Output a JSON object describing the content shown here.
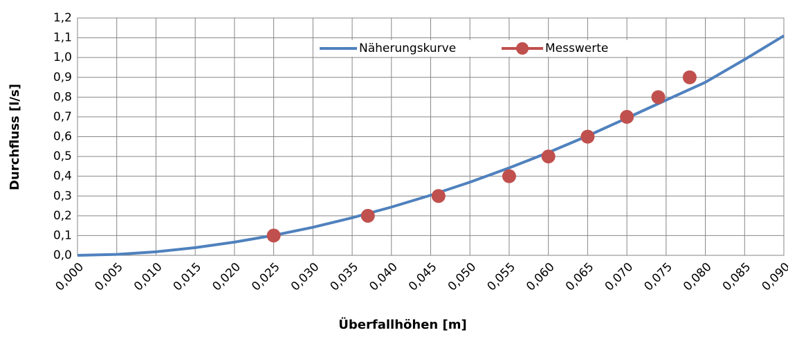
{
  "chart_data": {
    "type": "line",
    "xlabel": "Überfallhöhen [m]",
    "ylabel": "Durchfluss [l/s]",
    "xlim": [
      0,
      0.09
    ],
    "ylim": [
      0,
      1.2
    ],
    "xticks": [
      {
        "value": 0,
        "label": "0,000"
      },
      {
        "value": 0.005,
        "label": "0,005"
      },
      {
        "value": 0.01,
        "label": "0,010"
      },
      {
        "value": 0.015,
        "label": "0,015"
      },
      {
        "value": 0.02,
        "label": "0,020"
      },
      {
        "value": 0.025,
        "label": "0,025"
      },
      {
        "value": 0.03,
        "label": "0,030"
      },
      {
        "value": 0.035,
        "label": "0,035"
      },
      {
        "value": 0.04,
        "label": "0,040"
      },
      {
        "value": 0.045,
        "label": "0,045"
      },
      {
        "value": 0.05,
        "label": "0,050"
      },
      {
        "value": 0.055,
        "label": "0,055"
      },
      {
        "value": 0.06,
        "label": "0,060"
      },
      {
        "value": 0.065,
        "label": "0,065"
      },
      {
        "value": 0.07,
        "label": "0,070"
      },
      {
        "value": 0.075,
        "label": "0,075"
      },
      {
        "value": 0.08,
        "label": "0,080"
      },
      {
        "value": 0.085,
        "label": "0,085"
      },
      {
        "value": 0.09,
        "label": "0,090"
      }
    ],
    "yticks": [
      {
        "value": 0,
        "label": "0,0"
      },
      {
        "value": 0.1,
        "label": "0,1"
      },
      {
        "value": 0.2,
        "label": "0,2"
      },
      {
        "value": 0.3,
        "label": "0,3"
      },
      {
        "value": 0.4,
        "label": "0,4"
      },
      {
        "value": 0.5,
        "label": "0,5"
      },
      {
        "value": 0.6,
        "label": "0,6"
      },
      {
        "value": 0.7,
        "label": "0,7"
      },
      {
        "value": 0.8,
        "label": "0,8"
      },
      {
        "value": 0.9,
        "label": "0,9"
      },
      {
        "value": 1,
        "label": "1,0"
      },
      {
        "value": 1.1,
        "label": "1,1"
      },
      {
        "value": 1.2,
        "label": "1,2"
      }
    ],
    "grid": true,
    "legend": "top",
    "series": [
      {
        "name": "Näherungskurve",
        "type": "line",
        "color": "#4f81bd",
        "x": [
          0,
          0.005,
          0.01,
          0.015,
          0.02,
          0.025,
          0.03,
          0.035,
          0.04,
          0.045,
          0.05,
          0.055,
          0.06,
          0.065,
          0.07,
          0.075,
          0.08,
          0.085,
          0.09
        ],
        "values": [
          0,
          0.005,
          0.018,
          0.039,
          0.067,
          0.101,
          0.142,
          0.19,
          0.244,
          0.304,
          0.37,
          0.442,
          0.52,
          0.604,
          0.694,
          0.785,
          0.875,
          0.99,
          1.11
        ]
      },
      {
        "name": "Messwerte",
        "type": "scatter",
        "color": "#c0504d",
        "x": [
          0.025,
          0.037,
          0.046,
          0.055,
          0.06,
          0.065,
          0.07,
          0.074,
          0.078
        ],
        "values": [
          0.1,
          0.2,
          0.3,
          0.4,
          0.5,
          0.6,
          0.7,
          0.8,
          0.9
        ]
      }
    ]
  }
}
